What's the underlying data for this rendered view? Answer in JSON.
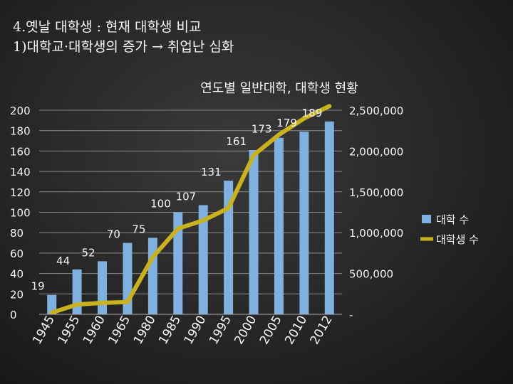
{
  "slide": {
    "heading_line1": "4.옛날 대학생 : 현재 대학생 비교",
    "heading_line2": "1)대학교·대학생의 증가 → 취업난 심화"
  },
  "colors": {
    "bars": "#7fb1e0",
    "line": "#c9b21c",
    "grid": "#8a8a8a",
    "text": "#f5f5f5"
  },
  "chart_data": {
    "type": "bar",
    "title": "연도별 일반대학, 대학생 현황",
    "categories": [
      "1945",
      "1955",
      "1960",
      "1965",
      "1980",
      "1985",
      "1990",
      "1995",
      "2000",
      "2005",
      "2010",
      "2012"
    ],
    "series": [
      {
        "name": "대학 수",
        "type": "bar",
        "axis": "left",
        "values": [
          19,
          44,
          52,
          70,
          75,
          100,
          107,
          131,
          161,
          173,
          179,
          189
        ],
        "data_labels": [
          "19",
          "44",
          "52",
          "70",
          "75",
          "100",
          "107",
          "131",
          "161",
          "173",
          "179",
          "189"
        ]
      },
      {
        "name": "대학생 수",
        "type": "line",
        "axis": "right",
        "values": [
          20000,
          120000,
          140000,
          150000,
          700000,
          1050000,
          1150000,
          1300000,
          1950000,
          2200000,
          2400000,
          2550000
        ]
      }
    ],
    "y_left": {
      "ylim": [
        0,
        200
      ],
      "ticks": [
        0,
        20,
        40,
        60,
        80,
        100,
        120,
        140,
        160,
        180,
        200
      ],
      "tick_labels": [
        "0",
        "20",
        "40",
        "60",
        "80",
        "100",
        "120",
        "140",
        "160",
        "180",
        "200"
      ]
    },
    "y_right": {
      "ylim": [
        0,
        2500000
      ],
      "ticks": [
        0,
        500000,
        1000000,
        1500000,
        2000000,
        2500000
      ],
      "tick_labels": [
        "-",
        "500,000",
        "1,000,000",
        "1,500,000",
        "2,000,000",
        "2,500,000"
      ]
    },
    "grid": true,
    "legend_position": "right"
  }
}
